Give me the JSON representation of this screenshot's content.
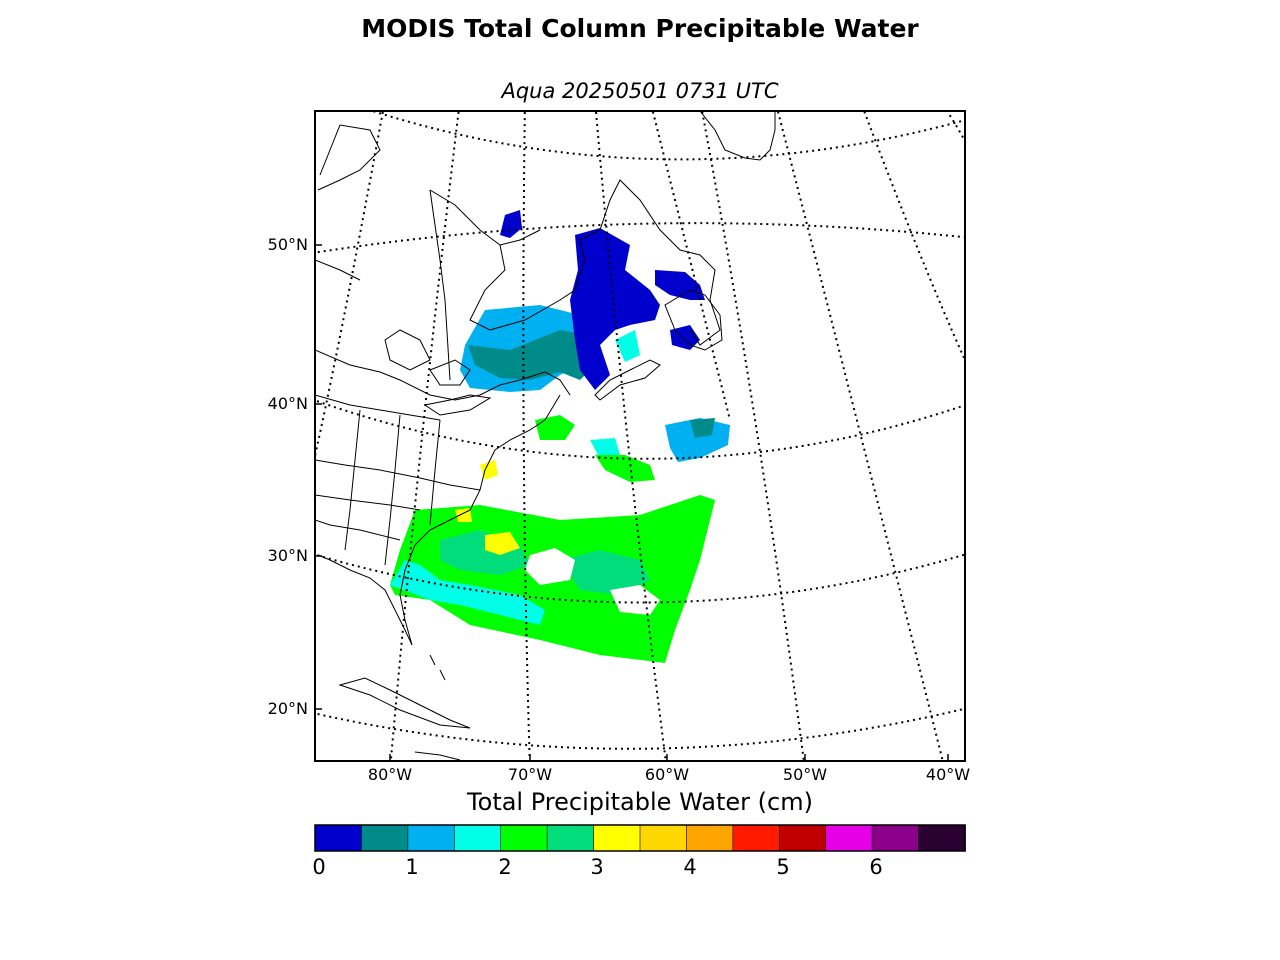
{
  "title": "MODIS Total Column Precipitable Water",
  "subtitle": "Aqua 20250501 0731 UTC",
  "lat_labels": [
    "50°N",
    "40°N",
    "30°N",
    "20°N"
  ],
  "lon_labels": [
    "80°W",
    "70°W",
    "60°W",
    "50°W",
    "40°W"
  ],
  "colorbar": {
    "title": "Total Precipitable Water (cm)",
    "ticks": [
      "0",
      "1",
      "2",
      "3",
      "4",
      "5",
      "6"
    ],
    "colors": [
      "#0000cd",
      "#008b8b",
      "#00b0f0",
      "#00ffe6",
      "#00ff00",
      "#00dd7a",
      "#ffff00",
      "#ffd700",
      "#ffa500",
      "#ff1a00",
      "#c00000",
      "#e600e6",
      "#8b008b",
      "#2a0030"
    ]
  },
  "region_colors": {
    "low": "#0000cd",
    "teal": "#008b8b",
    "lightblue": "#00b0f0",
    "cyan": "#00ffe6",
    "green": "#00ff00",
    "seagreen": "#00dd7a",
    "yellow": "#ffff00"
  }
}
